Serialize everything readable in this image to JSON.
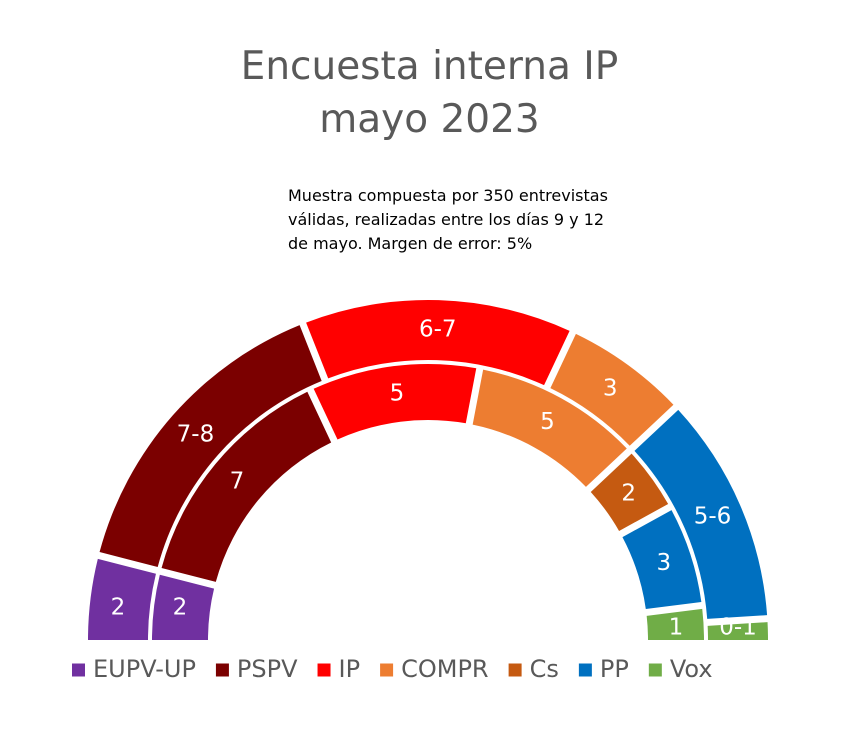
{
  "title": [
    "Encuesta interna IP",
    "mayo 2023"
  ],
  "note": [
    "Muestra compuesta por 350 entrevistas",
    "válidas, realizadas entre los días 9 y 12",
    "de mayo. Margen de error: 5%"
  ],
  "chart_data": {
    "type": "parliament-semicircle",
    "parties": [
      {
        "name": "EUPV-UP",
        "color": "#7030A0"
      },
      {
        "name": "PSPV",
        "color": "#7B0000"
      },
      {
        "name": "IP",
        "color": "#FF0000"
      },
      {
        "name": "COMPR",
        "color": "#ED7D31"
      },
      {
        "name": "Cs",
        "color": "#C55A11"
      },
      {
        "name": "PP",
        "color": "#0070C0"
      },
      {
        "name": "Vox",
        "color": "#70AD47"
      }
    ],
    "rings": [
      {
        "ring": "outer",
        "segments": [
          {
            "party": "EUPV-UP",
            "label": "2",
            "value": 2
          },
          {
            "party": "PSPV",
            "label": "7-8",
            "value": 7.5
          },
          {
            "party": "IP",
            "label": "6-7",
            "value": 6.5
          },
          {
            "party": "COMPR",
            "label": "3",
            "value": 3
          },
          {
            "party": "PP",
            "label": "5-6",
            "value": 5.5
          },
          {
            "party": "Vox",
            "label": "0-1",
            "value": 0.5
          }
        ]
      },
      {
        "ring": "inner",
        "segments": [
          {
            "party": "EUPV-UP",
            "label": "2",
            "value": 2
          },
          {
            "party": "PSPV",
            "label": "7",
            "value": 7
          },
          {
            "party": "IP",
            "label": "5",
            "value": 5
          },
          {
            "party": "COMPR",
            "label": "5",
            "value": 5
          },
          {
            "party": "Cs",
            "label": "2",
            "value": 2
          },
          {
            "party": "PP",
            "label": "3",
            "value": 3
          },
          {
            "party": "Vox",
            "label": "1",
            "value": 1
          }
        ]
      }
    ],
    "legend": [
      "EUPV-UP",
      "PSPV",
      "IP",
      "COMPR",
      "Cs",
      "PP",
      "Vox"
    ],
    "legend_position": "bottom"
  }
}
